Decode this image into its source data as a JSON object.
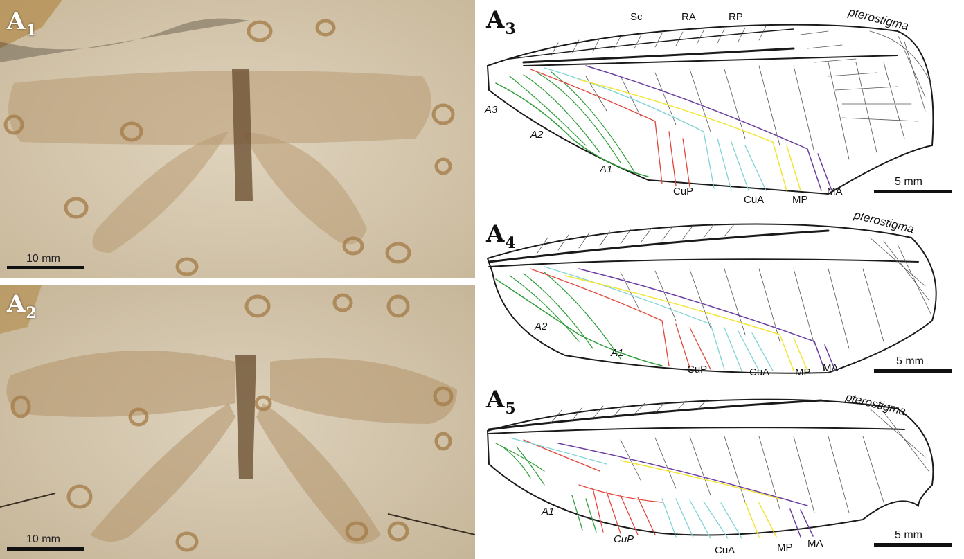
{
  "photos": [
    {
      "label": "A",
      "sub": "1",
      "scale_label": "10 mm"
    },
    {
      "label": "A",
      "sub": "2",
      "scale_label": "10 mm"
    }
  ],
  "drawings": [
    {
      "label": "A",
      "sub": "3",
      "pterostigma": "pterostigma",
      "scale_label": "5 mm",
      "top_veins": [
        "Sc",
        "RA",
        "RP"
      ],
      "anal_labels": [
        "A3",
        "A2",
        "A1"
      ],
      "lower_labels": [
        "CuP",
        "CuA",
        "MP",
        "MA"
      ]
    },
    {
      "label": "A",
      "sub": "4",
      "pterostigma": "pterostigma",
      "scale_label": "5 mm",
      "anal_labels": [
        "A2",
        "A1"
      ],
      "lower_labels": [
        "CuP",
        "CuA",
        "MP",
        "MA"
      ]
    },
    {
      "label": "A",
      "sub": "5",
      "pterostigma": "pterostigma",
      "scale_label": "5 mm",
      "anal_labels": [
        "A1"
      ],
      "lower_labels": [
        "CuP",
        "CuA",
        "MP",
        "MA"
      ]
    }
  ],
  "vein_colors": {
    "anal": "#2e9e3a",
    "cup": "#e2463a",
    "cua": "#7fd3d6",
    "mp": "#f2e534",
    "ma": "#6b3fa0",
    "main": "#1a1a1a",
    "crossvein": "#444444"
  }
}
